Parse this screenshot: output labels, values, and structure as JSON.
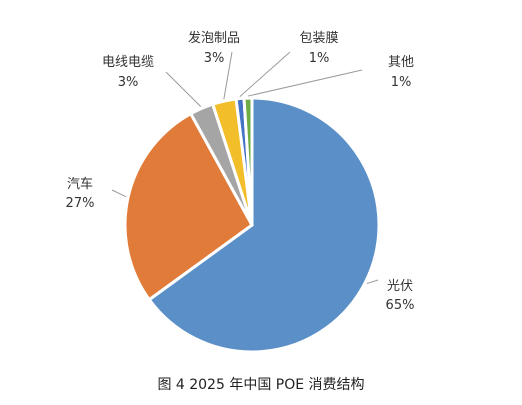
{
  "chart_data": {
    "type": "pie",
    "title": "图 4  2025 年中国 POE 消费结构",
    "slices": [
      {
        "name": "光伏",
        "value": 65,
        "label": "65%",
        "color": "#5B8FC8"
      },
      {
        "name": "汽车",
        "value": 27,
        "label": "27%",
        "color": "#E07B39"
      },
      {
        "name": "电线电缆",
        "value": 3,
        "label": "3%",
        "color": "#A5A5A5"
      },
      {
        "name": "发泡制品",
        "value": 3,
        "label": "3%",
        "color": "#F2BE2A"
      },
      {
        "name": "包装膜",
        "value": 1,
        "label": "1%",
        "color": "#4472C4"
      },
      {
        "name": "其他",
        "value": 1,
        "label": "1%",
        "color": "#70AD47"
      }
    ]
  }
}
